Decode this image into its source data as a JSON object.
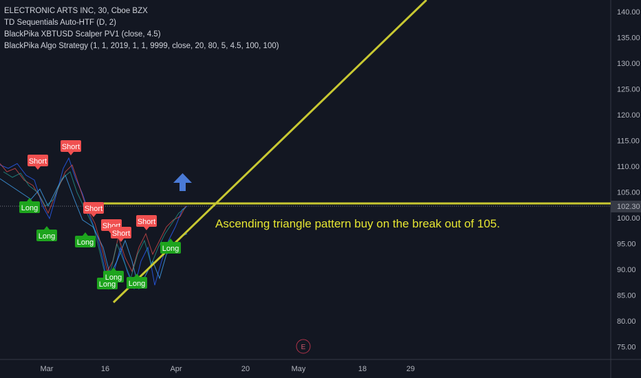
{
  "header": {
    "lines": [
      "ELECTRONIC ARTS INC, 30, Cboe BZX",
      "TD Sequentials Auto-HTF (D, 2)",
      "BlackPika XBTUSD Scalper PV1 (close, 4.5)",
      "BlackPika Algo Strategy (1, 1, 2019, 1, 1, 9999, close, 20, 80, 5, 4.5, 100, 100)"
    ]
  },
  "price_axis": {
    "labels": [
      "140.00",
      "135.00",
      "130.00",
      "125.00",
      "120.00",
      "115.00",
      "110.00",
      "105.00",
      "100.00",
      "95.00",
      "90.00",
      "85.00",
      "80.00",
      "75.00"
    ],
    "current": "102.30"
  },
  "time_axis": {
    "labels": [
      "Mar",
      "16",
      "Apr",
      "20",
      "May",
      "18",
      "29"
    ]
  },
  "annotation": "Ascending triangle pattern buy on the break out of 105.",
  "event_marker": "E",
  "signals": [
    {
      "label": "Short",
      "kind": "short"
    },
    {
      "label": "Short",
      "kind": "short"
    },
    {
      "label": "Short",
      "kind": "short"
    },
    {
      "label": "Short",
      "kind": "short"
    },
    {
      "label": "Short",
      "kind": "short"
    },
    {
      "label": "Short",
      "kind": "short"
    },
    {
      "label": "Long",
      "kind": "long"
    },
    {
      "label": "Long",
      "kind": "long"
    },
    {
      "label": "Long",
      "kind": "long"
    },
    {
      "label": "Long",
      "kind": "long"
    },
    {
      "label": "Long",
      "kind": "long"
    },
    {
      "label": "Long",
      "kind": "long"
    },
    {
      "label": "Long",
      "kind": "long"
    }
  ]
}
